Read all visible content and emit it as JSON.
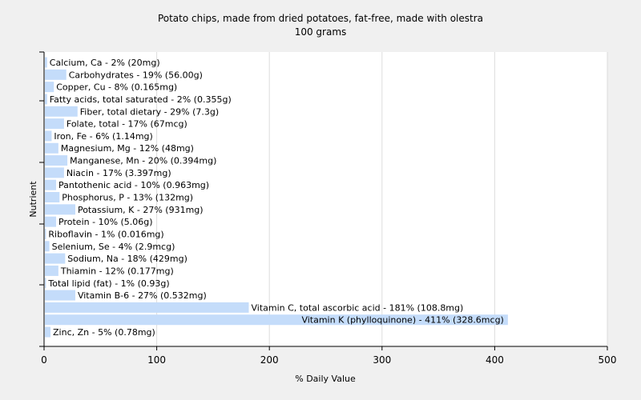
{
  "chart_data": {
    "type": "bar",
    "orientation": "horizontal",
    "title": "Potato chips, made from dried potatoes, fat-free, made with olestra",
    "subtitle": "100 grams",
    "xlabel": "% Daily Value",
    "ylabel": "Nutrient",
    "xlim": [
      0,
      500
    ],
    "xticks": [
      0,
      100,
      200,
      300,
      400,
      500
    ],
    "grid": "vertical",
    "bar_color": "#c4dcfa",
    "background_color": "#f0f0f0",
    "plot_background_color": "#ffffff",
    "categories": [
      "Calcium, Ca - 2% (20mg)",
      "Carbohydrates - 19% (56.00g)",
      "Copper, Cu - 8% (0.165mg)",
      "Fatty acids, total saturated - 2% (0.355g)",
      "Fiber, total dietary - 29% (7.3g)",
      "Folate, total - 17% (67mcg)",
      "Iron, Fe - 6% (1.14mg)",
      "Magnesium, Mg - 12% (48mg)",
      "Manganese, Mn - 20% (0.394mg)",
      "Niacin - 17% (3.397mg)",
      "Pantothenic acid - 10% (0.963mg)",
      "Phosphorus, P - 13% (132mg)",
      "Potassium, K - 27% (931mg)",
      "Protein - 10% (5.06g)",
      "Riboflavin - 1% (0.016mg)",
      "Selenium, Se - 4% (2.9mcg)",
      "Sodium, Na - 18% (429mg)",
      "Thiamin - 12% (0.177mg)",
      "Total lipid (fat) - 1% (0.93g)",
      "Vitamin B-6 - 27% (0.532mg)",
      "Vitamin C, total ascorbic acid - 181% (108.8mg)",
      "Vitamin K (phylloquinone) - 411% (328.6mcg)",
      "Zinc, Zn - 5% (0.78mg)"
    ],
    "values": [
      2,
      19,
      8,
      2,
      29,
      17,
      6,
      12,
      20,
      17,
      10,
      13,
      27,
      10,
      1,
      4,
      18,
      12,
      1,
      27,
      181,
      411,
      5
    ]
  }
}
